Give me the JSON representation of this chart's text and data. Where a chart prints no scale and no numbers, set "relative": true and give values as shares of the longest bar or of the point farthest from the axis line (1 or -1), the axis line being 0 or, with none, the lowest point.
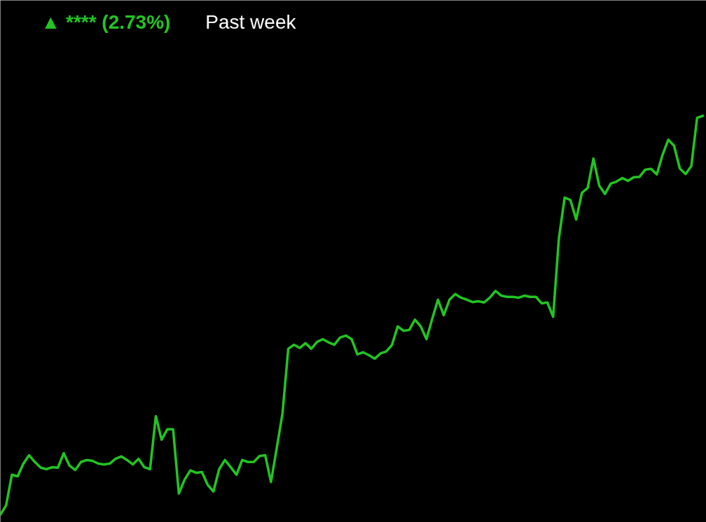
{
  "chart_data": {
    "type": "line",
    "relative": true,
    "title": "▲ **** (2.73%)",
    "subtitle": "Past week",
    "color": "#22c522",
    "categories": [
      null,
      null,
      null,
      null,
      null,
      null,
      null,
      null,
      null,
      null,
      null,
      null,
      null,
      null,
      null,
      null,
      null,
      null,
      null,
      null,
      null,
      null,
      null,
      null,
      null,
      null,
      null,
      null,
      null,
      null,
      null,
      null,
      null,
      null,
      null,
      null,
      null,
      null,
      null,
      null,
      null,
      null,
      null,
      null,
      null,
      null,
      null,
      null,
      null,
      null,
      null,
      null,
      null,
      null,
      null,
      null,
      null,
      null,
      null,
      null,
      null,
      null,
      null,
      null,
      null,
      null,
      null,
      null,
      null,
      null,
      null,
      null,
      null,
      null,
      null,
      null,
      null,
      null,
      null,
      null,
      null,
      null,
      null,
      null,
      null,
      null,
      null,
      null,
      null,
      null,
      null,
      null,
      null,
      null,
      null,
      null,
      null,
      null,
      null,
      null,
      null,
      null,
      null,
      null,
      null,
      null,
      null,
      null,
      null,
      null,
      null,
      null,
      null,
      null,
      null,
      null,
      null,
      null,
      null,
      null,
      null,
      null,
      null
    ],
    "values": [
      0,
      0.023,
      0.1,
      0.096,
      0.128,
      0.149,
      0.132,
      0.118,
      0.114,
      0.119,
      0.118,
      0.154,
      0.123,
      0.112,
      0.132,
      0.137,
      0.135,
      0.128,
      0.126,
      0.128,
      0.14,
      0.146,
      0.137,
      0.126,
      0.14,
      0.119,
      0.114,
      0.247,
      0.188,
      0.214,
      0.214,
      0.053,
      0.088,
      0.111,
      0.105,
      0.107,
      0.075,
      0.058,
      0.114,
      0.137,
      0.119,
      0.1,
      0.137,
      0.132,
      0.132,
      0.147,
      0.149,
      0.082,
      0.167,
      0.254,
      0.416,
      0.426,
      0.418,
      0.43,
      0.416,
      0.433,
      0.44,
      0.432,
      0.426,
      0.444,
      0.449,
      0.44,
      0.402,
      0.407,
      0.4,
      0.391,
      0.404,
      0.409,
      0.425,
      0.472,
      0.461,
      0.463,
      0.489,
      0.472,
      0.44,
      0.491,
      0.539,
      0.5,
      0.539,
      0.553,
      0.544,
      0.539,
      0.533,
      0.535,
      0.532,
      0.544,
      0.561,
      0.549,
      0.546,
      0.546,
      0.544,
      0.549,
      0.546,
      0.546,
      0.53,
      0.532,
      0.496,
      0.693,
      0.795,
      0.789,
      0.74,
      0.807,
      0.819,
      0.893,
      0.825,
      0.804,
      0.83,
      0.835,
      0.844,
      0.837,
      0.846,
      0.847,
      0.865,
      0.867,
      0.853,
      0.902,
      0.94,
      0.925,
      0.868,
      0.854,
      0.874,
      0.995,
      1
    ]
  }
}
